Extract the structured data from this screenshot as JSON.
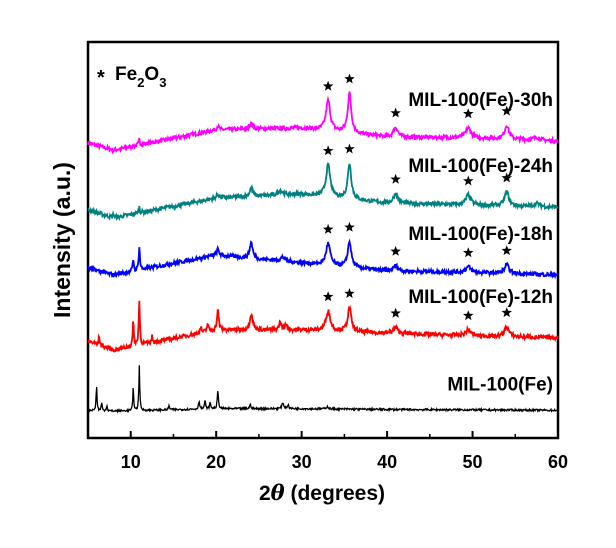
{
  "chart_data": {
    "type": "line",
    "title": "",
    "xlabel_prefix": "2",
    "xlabel_theta": "θ",
    "xlabel_suffix": " (degrees)",
    "ylabel": "Intensity (a.u.)",
    "xlim": [
      5,
      60
    ],
    "ylim": [
      0,
      100
    ],
    "xticks": [
      10,
      20,
      30,
      40,
      50,
      60
    ],
    "yticks_shown": false,
    "legend": {
      "marker": "*",
      "text_main": "Fe",
      "sub1": "2",
      "text_mid": "O",
      "sub2": "3",
      "placement": "top-left"
    },
    "star_positions": [
      33.1,
      35.6,
      41.0,
      49.5,
      54.0
    ],
    "series": [
      {
        "name": "MIL-100(Fe)-30h",
        "color": "#ff00ff",
        "stars": true,
        "baseline": [
          [
            5,
            74.5
          ],
          [
            8,
            72.7
          ],
          [
            20,
            77.8
          ],
          [
            30,
            78.3
          ],
          [
            40,
            76
          ],
          [
            50,
            75.8
          ],
          [
            60,
            75
          ]
        ],
        "peaks": [
          [
            11,
            1.5,
            0.08
          ],
          [
            20.2,
            1,
            0.15
          ],
          [
            24.1,
            1.6,
            0.2
          ],
          [
            33.1,
            7.6,
            0.3
          ],
          [
            35.6,
            10,
            0.25
          ],
          [
            41,
            2.5,
            0.3
          ],
          [
            49.5,
            2.5,
            0.35
          ],
          [
            54,
            3.5,
            0.3
          ],
          [
            57.5,
            0.8,
            0.4
          ]
        ]
      },
      {
        "name": "MIL-100(Fe)-24h",
        "color": "#008080",
        "stars": true,
        "baseline": [
          [
            5,
            57.6
          ],
          [
            8,
            55.6
          ],
          [
            20,
            60.6
          ],
          [
            30,
            61.6
          ],
          [
            40,
            59.3
          ],
          [
            50,
            58.8
          ],
          [
            60,
            58.3
          ]
        ],
        "peaks": [
          [
            8,
            1,
            0.08
          ],
          [
            11,
            1.5,
            0.08
          ],
          [
            20.2,
            1,
            0.15
          ],
          [
            24.1,
            2.2,
            0.2
          ],
          [
            27.5,
            1.2,
            0.3
          ],
          [
            33.1,
            8,
            0.3
          ],
          [
            35.6,
            9,
            0.25
          ],
          [
            41,
            2.5,
            0.3
          ],
          [
            49.5,
            2.5,
            0.35
          ],
          [
            54,
            3.5,
            0.3
          ],
          [
            57.5,
            0.8,
            0.4
          ]
        ]
      },
      {
        "name": "MIL-100(Fe)-18h",
        "color": "#0000ff",
        "stars": true,
        "baseline": [
          [
            5,
            42.9
          ],
          [
            8,
            41.2
          ],
          [
            20,
            46.2
          ],
          [
            30,
            44.2
          ],
          [
            40,
            42.2
          ],
          [
            50,
            41.8
          ],
          [
            60,
            41.2
          ]
        ],
        "peaks": [
          [
            10.3,
            3,
            0.08
          ],
          [
            11,
            6,
            0.08
          ],
          [
            20.2,
            1.5,
            0.15
          ],
          [
            24.1,
            4,
            0.2
          ],
          [
            27.8,
            1,
            0.3
          ],
          [
            33.1,
            5.5,
            0.3
          ],
          [
            35.6,
            6.5,
            0.25
          ],
          [
            41,
            1.4,
            0.3
          ],
          [
            49.5,
            1.4,
            0.35
          ],
          [
            54,
            2.2,
            0.3
          ]
        ]
      },
      {
        "name": "MIL-100(Fe)-12h",
        "color": "#ff0000",
        "stars": true,
        "baseline": [
          [
            5,
            24.5
          ],
          [
            8,
            22.2
          ],
          [
            20,
            27.3
          ],
          [
            30,
            27.3
          ],
          [
            40,
            26.5
          ],
          [
            50,
            25.8
          ],
          [
            60,
            25.3
          ]
        ],
        "peaks": [
          [
            6.3,
            2,
            0.08
          ],
          [
            10.3,
            6,
            0.08
          ],
          [
            11,
            11,
            0.08
          ],
          [
            12.5,
            1.5,
            0.08
          ],
          [
            18.2,
            1.5,
            0.1
          ],
          [
            19,
            2,
            0.1
          ],
          [
            20.2,
            5,
            0.12
          ],
          [
            24.1,
            4,
            0.2
          ],
          [
            27.5,
            2,
            0.15
          ],
          [
            28.2,
            1.5,
            0.15
          ],
          [
            33.1,
            5,
            0.3
          ],
          [
            35.6,
            6,
            0.25
          ],
          [
            41,
            1.5,
            0.3
          ],
          [
            49.5,
            1.5,
            0.35
          ],
          [
            54,
            2.5,
            0.3
          ]
        ]
      },
      {
        "name": "MIL-100(Fe)",
        "color": "#000000",
        "stars": false,
        "baseline": [
          [
            5,
            7
          ],
          [
            8,
            6.8
          ],
          [
            20,
            7.4
          ],
          [
            30,
            7.4
          ],
          [
            40,
            7.2
          ],
          [
            60,
            7
          ]
        ],
        "peaks": [
          [
            6,
            6.5,
            0.06
          ],
          [
            6.6,
            2,
            0.06
          ],
          [
            7.2,
            1.5,
            0.06
          ],
          [
            10.3,
            6,
            0.06
          ],
          [
            11,
            11.5,
            0.06
          ],
          [
            14.5,
            1,
            0.08
          ],
          [
            18,
            2,
            0.08
          ],
          [
            18.7,
            2,
            0.08
          ],
          [
            19.3,
            1.5,
            0.08
          ],
          [
            20.2,
            4.5,
            0.08
          ],
          [
            24,
            1,
            0.1
          ],
          [
            27.8,
            1.5,
            0.12
          ],
          [
            28.4,
            1,
            0.1
          ],
          [
            33,
            0.6,
            0.15
          ]
        ]
      }
    ]
  }
}
